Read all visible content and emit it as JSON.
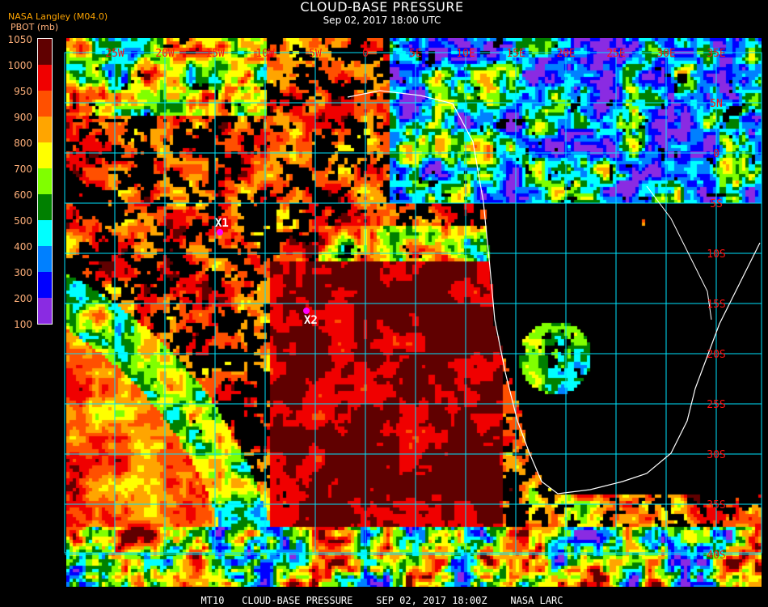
{
  "header": {
    "title": "CLOUD-BASE PRESSURE",
    "subtitle": "Sep 02, 2017 18:00 UTC",
    "provenance": "NASA Langley (M04.0)"
  },
  "legend": {
    "unit_label": "PBOT (mb)",
    "ticks": [
      "1050",
      "1000",
      "950",
      "900",
      "800",
      "700",
      "600",
      "500",
      "400",
      "300",
      "200",
      "100"
    ],
    "colors": [
      "#600000",
      "#f00000",
      "#ff5000",
      "#ffa500",
      "#ffff00",
      "#80ff00",
      "#008000",
      "#00ffff",
      "#0080ff",
      "#0000ff",
      "#8a2be2"
    ]
  },
  "grid": {
    "color": "#00e5ff",
    "label_color": "#ff1010",
    "longitudes": [
      "25W",
      "20W",
      "15W",
      "10W",
      "5W",
      "0",
      "5E",
      "10E",
      "15E",
      "20E",
      "25E",
      "30E",
      "35E"
    ],
    "latitudes": [
      "5N",
      "0",
      "5S",
      "10S",
      "15S",
      "20S",
      "25S",
      "30S",
      "35S",
      "40S"
    ]
  },
  "markers": [
    {
      "label": "X1",
      "color": "#ff00ff"
    },
    {
      "label": "X2",
      "color": "#ff00ff"
    }
  ],
  "footer": "MT10   CLOUD-BASE PRESSURE    SEP 02, 2017 18:00Z    NASA LARC"
}
